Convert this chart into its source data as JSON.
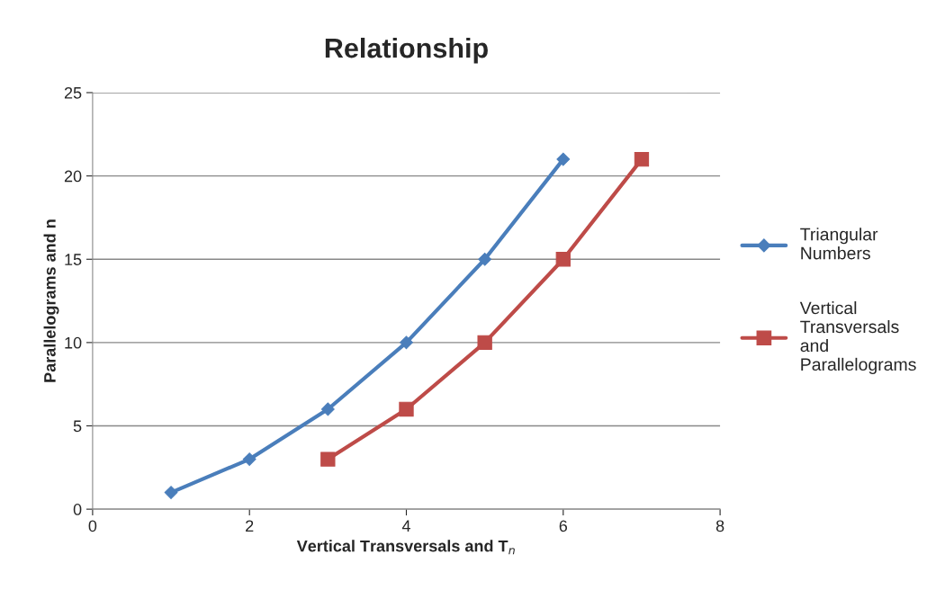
{
  "chart_data": {
    "type": "line",
    "title": "Relationship",
    "xlabel": "Vertical Transversals and T$_{n}$",
    "ylabel": "Parallelograms and n",
    "series": [
      {
        "name": "Triangular Numbers",
        "color": "#4a7ebb",
        "marker": "diamond",
        "x": [
          1,
          2,
          3,
          4,
          5,
          6
        ],
        "values": [
          1,
          3,
          6,
          10,
          15,
          21
        ]
      },
      {
        "name": "Vertical Transversals and Parallelograms",
        "color": "#be4b48",
        "marker": "square",
        "x": [
          3,
          4,
          5,
          6,
          7
        ],
        "values": [
          3,
          6,
          10,
          15,
          21
        ]
      }
    ],
    "xlim": [
      0,
      8
    ],
    "xticks": [
      0,
      2,
      4,
      6,
      8
    ],
    "ylim": [
      0,
      25
    ],
    "yticks": [
      0,
      5,
      10,
      15,
      20,
      25
    ],
    "grid": "y",
    "legend": "right",
    "line_style": "solid"
  }
}
